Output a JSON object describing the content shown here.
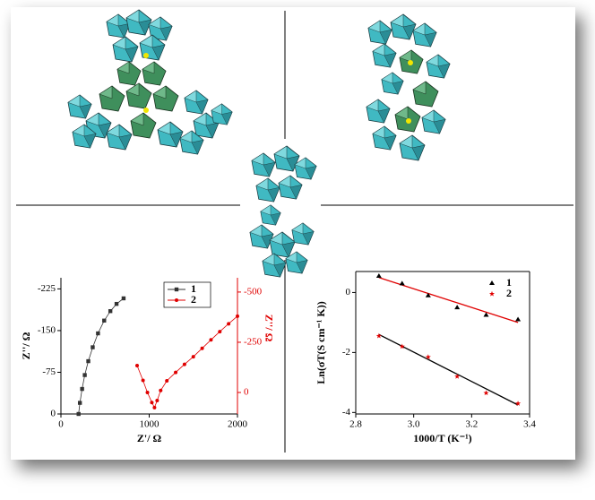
{
  "chart_data": [
    {
      "type": "line",
      "xlabel": "Z'/ Ω",
      "ylabel": "Z''/ Ω",
      "y2label": "Z''/ Ω",
      "xlim": [
        0,
        2000
      ],
      "xticks": [
        0,
        1000,
        2000
      ],
      "ylim": [
        0,
        -245
      ],
      "yticks": [
        -225,
        -150,
        -75,
        0
      ],
      "y2lim": [
        107,
        -571
      ],
      "y2ticks": [
        -500,
        -250,
        0
      ],
      "y2color": "#e00000",
      "legend": "upper right",
      "series": [
        {
          "name": "1",
          "color": "#333333",
          "marker": "square",
          "x": [
            200,
            215,
            240,
            270,
            310,
            360,
            420,
            490,
            560,
            630,
            710
          ],
          "values": [
            0,
            -20,
            -45,
            -70,
            -95,
            -120,
            -145,
            -168,
            -185,
            -198,
            -208
          ]
        },
        {
          "name": "2",
          "color": "#e00000",
          "marker": "circle",
          "axis": "y2",
          "x": [
            863,
            930,
            980,
            1030,
            1060,
            1090,
            1130,
            1200,
            1300,
            1400,
            1500,
            1600,
            1700,
            1800,
            1900,
            2000
          ],
          "values": [
            -134,
            -60,
            0,
            50,
            75,
            40,
            -10,
            -58,
            -100,
            -140,
            -178,
            -220,
            -262,
            -303,
            -342,
            -380
          ]
        }
      ]
    },
    {
      "type": "scatter",
      "xlabel": "1000/T (K⁻¹)",
      "ylabel": "Ln(σT(S cm⁻¹ K))",
      "xlim": [
        2.8,
        3.4
      ],
      "xticks": [
        2.8,
        {
          "value": 3,
          "label": "3.0"
        },
        3.2,
        3.4
      ],
      "ylim": [
        -4.05,
        0.7
      ],
      "yticks": [
        -4,
        -2,
        0
      ],
      "legend": "upper right",
      "box": true,
      "series": [
        {
          "name": "1",
          "color": "#000000",
          "marker": "triangle",
          "fit_color": "#e00000",
          "x": [
            2.88,
            2.96,
            3.05,
            3.15,
            3.25,
            3.36
          ],
          "values": [
            0.55,
            0.3,
            -0.1,
            -0.5,
            -0.75,
            -0.9
          ],
          "fit": {
            "x": [
              2.88,
              3.36
            ],
            "values": [
              0.5,
              -1.0
            ]
          }
        },
        {
          "name": "2",
          "color": "#e00000",
          "marker": "star",
          "fit_color": "#000000",
          "x": [
            2.88,
            2.96,
            3.05,
            3.15,
            3.25,
            3.36
          ],
          "values": [
            -1.45,
            -1.8,
            -2.15,
            -2.8,
            -3.35,
            -3.7
          ],
          "fit": {
            "x": [
              2.88,
              3.36
            ],
            "values": [
              -1.4,
              -3.75
            ]
          }
        }
      ]
    }
  ]
}
